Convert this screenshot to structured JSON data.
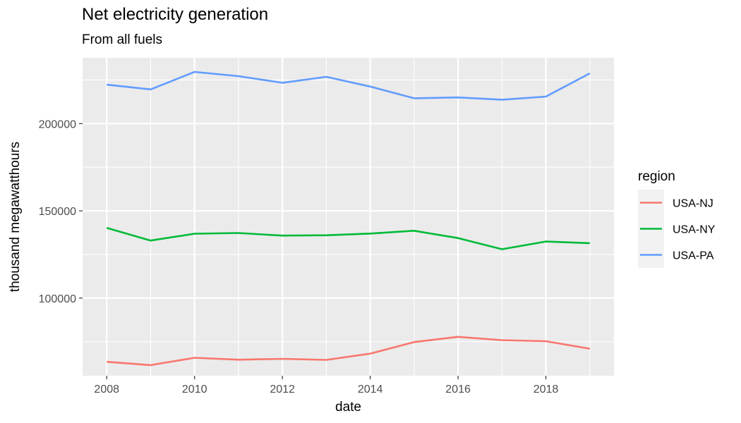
{
  "chart_data": {
    "type": "line",
    "title": "Net electricity generation",
    "subtitle": "From all fuels",
    "xlabel": "date",
    "ylabel": "thousand megawatthours",
    "x": [
      2008,
      2009,
      2010,
      2011,
      2012,
      2013,
      2014,
      2015,
      2016,
      2017,
      2018,
      2019
    ],
    "x_ticks": [
      2008,
      2010,
      2012,
      2014,
      2016,
      2018
    ],
    "x_tick_labels": [
      "2008",
      "2010",
      "2012",
      "2014",
      "2016",
      "2018"
    ],
    "y_ticks": [
      100000,
      150000,
      200000
    ],
    "y_tick_labels": [
      "100000",
      "150000",
      "200000"
    ],
    "xlim": [
      2007.45,
      2019.55
    ],
    "ylim": [
      55500,
      237700
    ],
    "grid": true,
    "legend": {
      "title": "region",
      "position": "right"
    },
    "series": [
      {
        "name": "USA-NJ",
        "color": "#F8766D",
        "values": [
          63500,
          61600,
          65800,
          64700,
          65200,
          64600,
          68200,
          74800,
          77800,
          75900,
          75300,
          71000
        ]
      },
      {
        "name": "USA-NY",
        "color": "#00BA38",
        "values": [
          140200,
          133000,
          136900,
          137300,
          135800,
          136000,
          137000,
          138600,
          134400,
          128000,
          132400,
          131500
        ]
      },
      {
        "name": "USA-PA",
        "color": "#619CFF",
        "values": [
          222300,
          219600,
          229600,
          227200,
          223400,
          226800,
          221200,
          214500,
          215000,
          213700,
          215500,
          228800
        ]
      }
    ]
  }
}
